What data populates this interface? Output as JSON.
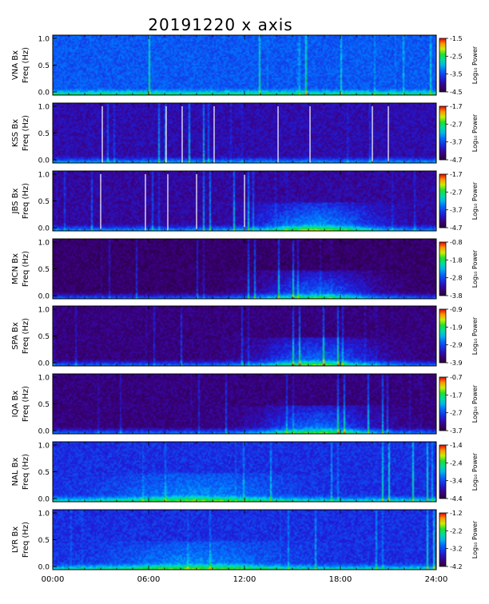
{
  "chart_data": {
    "type": "heatmap",
    "title": "20191220  x axis",
    "xlabel": "",
    "x_ticks": [
      "00:00",
      "06:00",
      "12:00",
      "18:00",
      "24:00"
    ],
    "xlim": [
      0,
      24
    ],
    "ylim": [
      0,
      1.0
    ],
    "y_ticks": [
      "1.0",
      "0.5",
      "0.0"
    ],
    "colorbar_label": "Log₁₀ Power",
    "colormap": "rainbow (purple → blue → cyan → green → yellow → red)",
    "panels": [
      {
        "station": "VNA Bx",
        "ylabel_freq": "Freq (Hz)",
        "cbar_ticks": [
          "-1.5",
          "-2.5",
          "-3.5",
          "-4.5"
        ],
        "background_level": 0.3,
        "gaps_hours": []
      },
      {
        "station": "KSS Bx",
        "ylabel_freq": "Freq (Hz)",
        "cbar_ticks": [
          "-1.7",
          "-2.7",
          "-3.7",
          "-4.7"
        ],
        "background_level": 0.12,
        "gaps_hours": [
          3.1,
          7.1,
          8.1,
          10.1,
          14.1,
          16.1,
          20.0,
          21.0
        ]
      },
      {
        "station": "JBS Bx",
        "ylabel_freq": "Freq (Hz)",
        "cbar_ticks": [
          "-1.7",
          "-2.7",
          "-3.7",
          "-4.7"
        ],
        "background_level": 0.1,
        "gaps_hours": [
          3.0,
          5.8,
          7.2,
          9.0,
          12.0
        ]
      },
      {
        "station": "MCN Bx",
        "ylabel_freq": "Freq (Hz)",
        "cbar_ticks": [
          "-0.8",
          "-1.8",
          "-2.8",
          "-3.8"
        ],
        "background_level": 0.02,
        "gaps_hours": []
      },
      {
        "station": "SPA Bx",
        "ylabel_freq": "Freq (Hz)",
        "cbar_ticks": [
          "-0.9",
          "-1.9",
          "-2.9",
          "-3.9"
        ],
        "background_level": 0.05,
        "gaps_hours": []
      },
      {
        "station": "IQA Bx",
        "ylabel_freq": "Freq (Hz)",
        "cbar_ticks": [
          "-0.7",
          "-1.7",
          "-2.7",
          "-3.7"
        ],
        "background_level": 0.05,
        "gaps_hours": []
      },
      {
        "station": "NAL Bx",
        "ylabel_freq": "Freq (Hz)",
        "cbar_ticks": [
          "-1.4",
          "-2.4",
          "-3.4",
          "-4.4"
        ],
        "background_level": 0.22,
        "gaps_hours": []
      },
      {
        "station": "LYR Bx",
        "ylabel_freq": "Freq (Hz)",
        "cbar_ticks": [
          "-1.2",
          "-2.2",
          "-3.2",
          "-4.2"
        ],
        "background_level": 0.22,
        "gaps_hours": []
      }
    ]
  }
}
